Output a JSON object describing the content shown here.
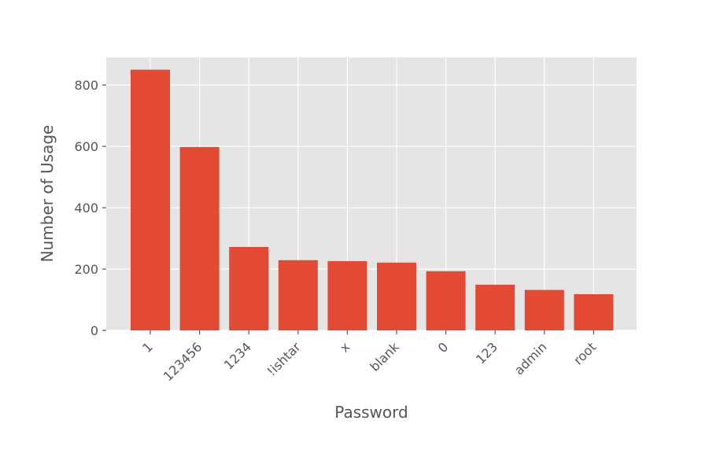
{
  "chart_data": {
    "type": "bar",
    "title": "",
    "xlabel": "Password",
    "ylabel": "Number of Usage",
    "categories": [
      "1",
      "123456",
      "1234",
      "!ishtar",
      "x",
      "blank",
      "0",
      "123",
      "admin",
      "root"
    ],
    "values": [
      850,
      598,
      272,
      229,
      226,
      221,
      193,
      149,
      132,
      118
    ],
    "ylim": [
      0,
      890
    ],
    "yticks": [
      0,
      200,
      400,
      600,
      800
    ],
    "grid": true,
    "bar_color": "#E24A33",
    "plot_background": "#E5E5E5",
    "grid_color": "#FFFFFF",
    "tick_color": "#555555",
    "xtick_rotation": -45
  }
}
